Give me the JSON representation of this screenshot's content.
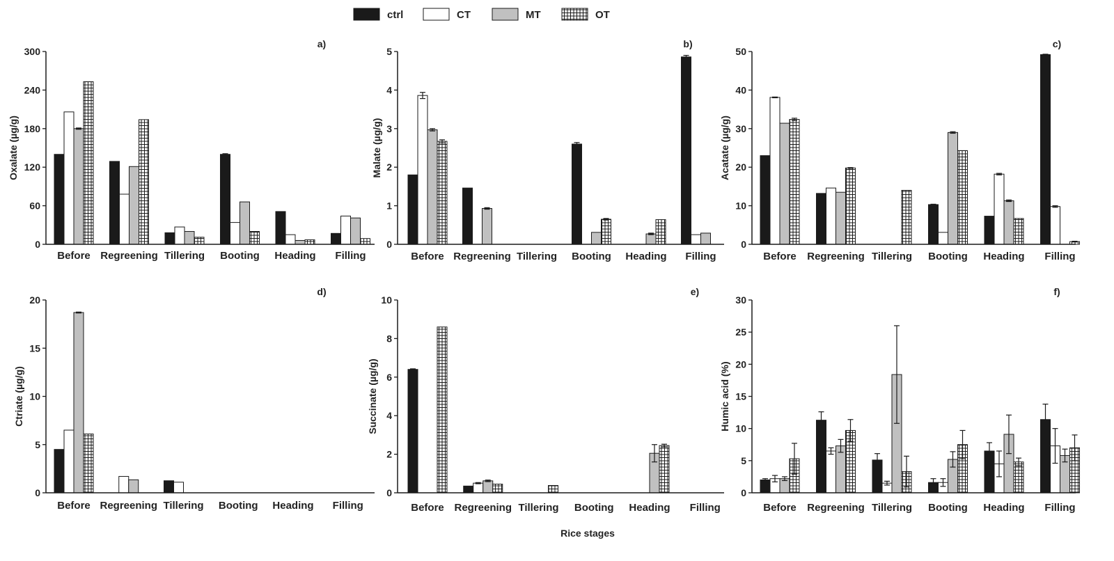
{
  "figure": {
    "xlabel": "Rice stages",
    "legend": [
      {
        "name": "ctrl",
        "fill": "#1a1a1a",
        "pattern": "solid"
      },
      {
        "name": "CT",
        "fill": "#ffffff",
        "pattern": "solid"
      },
      {
        "name": "MT",
        "fill": "#c0c0c0",
        "pattern": "solid"
      },
      {
        "name": "OT",
        "fill": "#ffffff",
        "pattern": "grid"
      }
    ]
  },
  "chart_data": [
    {
      "type": "bar",
      "panel_label": "a)",
      "ylabel": "Oxalate (µg/g)",
      "ylim": [
        0,
        300
      ],
      "yticks": [
        0,
        60,
        120,
        180,
        240,
        300
      ],
      "categories": [
        "Before",
        "Regreening",
        "Tillering",
        "Booting",
        "Heading",
        "Filling"
      ],
      "series": [
        {
          "name": "ctrl",
          "values": [
            140,
            129,
            18,
            140,
            51,
            17
          ],
          "errors": [
            0,
            0,
            0,
            1,
            0,
            0
          ]
        },
        {
          "name": "CT",
          "values": [
            206,
            78,
            27,
            34,
            15,
            44
          ],
          "errors": [
            0,
            0,
            0,
            0,
            0,
            0
          ]
        },
        {
          "name": "MT",
          "values": [
            180,
            121,
            20,
            66,
            6,
            41
          ],
          "errors": [
            1,
            0,
            0,
            0,
            0,
            0
          ]
        },
        {
          "name": "OT",
          "values": [
            253,
            194,
            11,
            20,
            7,
            9
          ],
          "errors": [
            0,
            0,
            0,
            0,
            0,
            0
          ]
        }
      ]
    },
    {
      "type": "bar",
      "panel_label": "b)",
      "ylabel": "Malate (µg/g)",
      "ylim": [
        0,
        5
      ],
      "yticks": [
        0,
        1,
        2,
        3,
        4,
        5
      ],
      "categories": [
        "Before",
        "Regreening",
        "Tillering",
        "Booting",
        "Heading",
        "Filling"
      ],
      "series": [
        {
          "name": "ctrl",
          "values": [
            1.8,
            1.46,
            0,
            2.6,
            0,
            4.86
          ],
          "errors": [
            0,
            0,
            0,
            0.04,
            0,
            0.04
          ]
        },
        {
          "name": "CT",
          "values": [
            3.86,
            0,
            0,
            0,
            0,
            0.25
          ],
          "errors": [
            0.08,
            0,
            0,
            0,
            0,
            0
          ]
        },
        {
          "name": "MT",
          "values": [
            2.97,
            0.93,
            0,
            0.31,
            0.27,
            0.29
          ],
          "errors": [
            0.03,
            0.02,
            0,
            0,
            0.02,
            0
          ]
        },
        {
          "name": "OT",
          "values": [
            2.67,
            0,
            0,
            0.65,
            0.64,
            0
          ],
          "errors": [
            0.04,
            0,
            0,
            0.02,
            0,
            0
          ]
        }
      ]
    },
    {
      "type": "bar",
      "panel_label": "c)",
      "ylabel": "Acatate (µg/g)",
      "ylim": [
        0,
        50
      ],
      "yticks": [
        0,
        10,
        20,
        30,
        40,
        50
      ],
      "categories": [
        "Before",
        "Regreening",
        "Tillering",
        "Booting",
        "Heading",
        "Filling"
      ],
      "series": [
        {
          "name": "ctrl",
          "values": [
            23,
            13.2,
            0,
            10.3,
            7.3,
            49.2
          ],
          "errors": [
            0,
            0,
            0,
            0.1,
            0,
            0.1
          ]
        },
        {
          "name": "CT",
          "values": [
            38.1,
            14.6,
            0,
            3.1,
            18.2,
            9.8
          ],
          "errors": [
            0.1,
            0,
            0,
            0,
            0.2,
            0.2
          ]
        },
        {
          "name": "MT",
          "values": [
            31.4,
            13.5,
            0,
            29,
            11.3,
            0
          ],
          "errors": [
            0,
            0,
            0,
            0.2,
            0.2,
            0
          ]
        },
        {
          "name": "OT",
          "values": [
            32.4,
            19.8,
            14,
            24.3,
            6.7,
            0.7
          ],
          "errors": [
            0.3,
            0.1,
            0,
            0,
            0,
            0.1
          ]
        }
      ]
    },
    {
      "type": "bar",
      "panel_label": "d)",
      "ylabel": "Ctriate (µg/g)",
      "ylim": [
        0,
        20
      ],
      "yticks": [
        0,
        5,
        10,
        15,
        20
      ],
      "categories": [
        "Before",
        "Regreening",
        "Tillering",
        "Booting",
        "Heading",
        "Filling"
      ],
      "series": [
        {
          "name": "ctrl",
          "values": [
            4.5,
            0,
            1.25,
            0,
            0,
            0
          ],
          "errors": [
            0,
            0,
            0,
            0,
            0,
            0
          ]
        },
        {
          "name": "CT",
          "values": [
            6.5,
            1.7,
            1.1,
            0,
            0,
            0
          ],
          "errors": [
            0,
            0,
            0,
            0,
            0,
            0
          ]
        },
        {
          "name": "MT",
          "values": [
            18.7,
            1.35,
            0,
            0,
            0,
            0
          ],
          "errors": [
            0.05,
            0,
            0,
            0,
            0,
            0
          ]
        },
        {
          "name": "OT",
          "values": [
            6.1,
            0,
            0,
            0,
            0,
            0
          ],
          "errors": [
            0,
            0,
            0,
            0,
            0,
            0
          ]
        }
      ]
    },
    {
      "type": "bar",
      "panel_label": "e)",
      "ylabel": "Succinate (µg/g)",
      "ylim": [
        0,
        10
      ],
      "yticks": [
        0,
        2,
        4,
        6,
        8,
        10
      ],
      "categories": [
        "Before",
        "Regreening",
        "Tillering",
        "Booting",
        "Heading",
        "Filling"
      ],
      "series": [
        {
          "name": "ctrl",
          "values": [
            6.4,
            0.35,
            0,
            0,
            0,
            0
          ],
          "errors": [
            0.03,
            0,
            0,
            0,
            0,
            0
          ]
        },
        {
          "name": "CT",
          "values": [
            0,
            0.5,
            0,
            0,
            0,
            0
          ],
          "errors": [
            0,
            0.03,
            0,
            0,
            0,
            0
          ]
        },
        {
          "name": "MT",
          "values": [
            0,
            0.62,
            0,
            0,
            2.05,
            0
          ],
          "errors": [
            0,
            0.04,
            0,
            0,
            0.45,
            0
          ]
        },
        {
          "name": "OT",
          "values": [
            8.6,
            0.45,
            0.38,
            0,
            2.45,
            0
          ],
          "errors": [
            0,
            0,
            0,
            0,
            0.07,
            0
          ]
        }
      ]
    },
    {
      "type": "bar",
      "panel_label": "f)",
      "ylabel": "Humic acid (%)",
      "ylim": [
        0,
        30
      ],
      "yticks": [
        0,
        5,
        10,
        15,
        20,
        25,
        30
      ],
      "categories": [
        "Before",
        "Regreening",
        "Tillering",
        "Booting",
        "Heading",
        "Filling"
      ],
      "series": [
        {
          "name": "ctrl",
          "values": [
            2,
            11.3,
            5.1,
            1.6,
            6.5,
            11.4
          ],
          "errors": [
            0.2,
            1.3,
            1,
            0.6,
            1.3,
            2.4
          ]
        },
        {
          "name": "CT",
          "values": [
            2.2,
            6.5,
            1.5,
            1.6,
            4.5,
            7.3
          ],
          "errors": [
            0.5,
            0.5,
            0.3,
            0.6,
            2,
            2.7
          ]
        },
        {
          "name": "MT",
          "values": [
            2.2,
            7.3,
            18.4,
            5.2,
            9.1,
            5.8
          ],
          "errors": [
            0.3,
            1,
            7.6,
            1.2,
            3,
            1
          ]
        },
        {
          "name": "OT",
          "values": [
            5.3,
            9.7,
            3.3,
            7.5,
            4.8,
            7
          ],
          "errors": [
            2.4,
            1.7,
            2.4,
            2.2,
            0.6,
            2
          ]
        }
      ]
    }
  ]
}
